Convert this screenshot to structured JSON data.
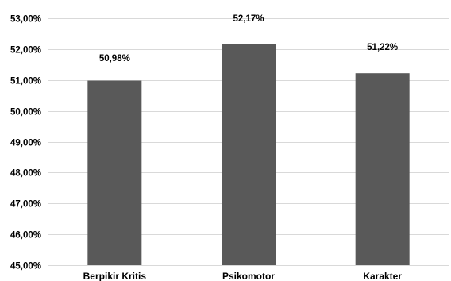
{
  "chart_data": {
    "type": "bar",
    "categories": [
      "Berpikir Kritis",
      "Psikomotor",
      "Karakter"
    ],
    "values": [
      50.98,
      52.17,
      51.22
    ],
    "value_labels": [
      "50,98%",
      "52,17%",
      "51,22%"
    ],
    "title": "",
    "xlabel": "",
    "ylabel": "",
    "ylim": [
      45,
      53
    ],
    "yticks": [
      45,
      46,
      47,
      48,
      49,
      50,
      51,
      52,
      53
    ],
    "ytick_labels": [
      "45,00%",
      "46,00%",
      "47,00%",
      "48,00%",
      "49,00%",
      "50,00%",
      "51,00%",
      "52,00%",
      "53,00%"
    ],
    "grid": true,
    "legend": "none",
    "bar_color": "#595959",
    "grid_color": "#d9d9d9"
  }
}
